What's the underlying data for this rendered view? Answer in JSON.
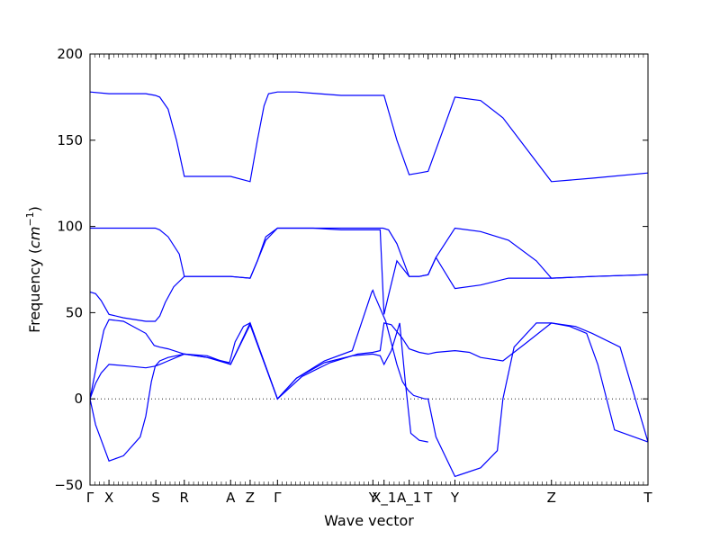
{
  "chart_data": {
    "type": "line",
    "title": "",
    "xlabel": "Wave vector",
    "ylabel": "Frequency (cm⁻¹)",
    "ylabel_main": "Frequency (",
    "ylabel_unit": "cm",
    "ylabel_exp": "−1",
    "ylabel_close": ")",
    "ylim": [
      -50,
      200
    ],
    "xlim": [
      0,
      1
    ],
    "yticks": [
      -50,
      0,
      50,
      100,
      150,
      200
    ],
    "ytick_labels": [
      "−50",
      "0",
      "50",
      "100",
      "150",
      "200"
    ],
    "xticks": [
      {
        "label": "Γ",
        "x": 0.0
      },
      {
        "label": "X",
        "x": 0.034
      },
      {
        "label": "S",
        "x": 0.118
      },
      {
        "label": "R",
        "x": 0.169
      },
      {
        "label": "A",
        "x": 0.252
      },
      {
        "label": "Z",
        "x": 0.287
      },
      {
        "label": "Γ",
        "x": 0.336
      },
      {
        "label": "Y",
        "x": 0.507
      },
      {
        "label": "X_1",
        "x": 0.527
      },
      {
        "label": "A_1",
        "x": 0.572
      },
      {
        "label": "T",
        "x": 0.606
      },
      {
        "label": "Y",
        "x": 0.654
      },
      {
        "label": "Z",
        "x": 0.827
      },
      {
        "label": "T",
        "x": 1.0
      }
    ],
    "zero_line": {
      "y": 0,
      "style": "dotted"
    },
    "grid": false,
    "legend": "none",
    "series_color": "#0000ff",
    "series": [
      {
        "x": [
          0,
          0.034,
          0.06,
          0.1,
          0.117,
          0.125,
          0.14,
          0.155,
          0.169,
          0.21,
          0.252,
          0.287,
          0.3,
          0.312,
          0.32,
          0.336,
          0.37,
          0.41,
          0.45,
          0.49,
          0.507,
          0.515,
          0.527,
          0.55,
          0.572,
          0.59,
          0.606,
          0.654,
          0.7,
          0.74,
          0.78,
          0.827,
          0.9,
          1.0
        ],
        "y": [
          178,
          177,
          177,
          177,
          176,
          175,
          168,
          150,
          129,
          129,
          129,
          126,
          150,
          170,
          177,
          178,
          178,
          177,
          176,
          176,
          176,
          176,
          176,
          150,
          130,
          131,
          132,
          175,
          173,
          163,
          146,
          126,
          128,
          131
        ]
      },
      {
        "x": [
          0,
          0.05,
          0.1,
          0.117,
          0.125,
          0.14,
          0.16,
          0.169,
          0.21,
          0.252,
          0.287,
          0.3,
          0.315,
          0.336,
          0.4,
          0.45,
          0.507,
          0.525,
          0.535,
          0.55,
          0.572,
          0.59,
          0.606,
          0.62,
          0.654,
          0.7,
          0.75,
          0.8,
          0.827,
          0.9,
          1.0
        ],
        "y": [
          99,
          99,
          99,
          99,
          98,
          94,
          84,
          71,
          71,
          71,
          70,
          80,
          94,
          99,
          99,
          99,
          99,
          99,
          98,
          90,
          71,
          71,
          72,
          82,
          99,
          97,
          92,
          80,
          70,
          71,
          72
        ]
      },
      {
        "x": [
          0,
          0.01,
          0.02,
          0.034,
          0.06,
          0.1,
          0.117,
          0.125,
          0.135,
          0.15,
          0.169,
          0.21,
          0.252,
          0.287,
          0.3,
          0.315,
          0.336,
          0.4,
          0.45,
          0.507,
          0.52,
          0.527,
          0.535,
          0.55,
          0.572,
          0.59,
          0.606,
          0.62,
          0.654,
          0.7,
          0.75,
          0.8,
          0.827,
          0.9,
          1.0
        ],
        "y": [
          62,
          61,
          57,
          49,
          47,
          45,
          45,
          48,
          56,
          65,
          71,
          71,
          71,
          70,
          80,
          92,
          99,
          99,
          98,
          98,
          98,
          49,
          60,
          80,
          71,
          71,
          72,
          82,
          64,
          66,
          70,
          70,
          70,
          71,
          72
        ]
      },
      {
        "x": [
          0,
          0.015,
          0.025,
          0.034,
          0.06,
          0.1,
          0.115,
          0.125,
          0.14,
          0.169,
          0.21,
          0.25,
          0.26,
          0.275,
          0.287,
          0.336,
          0.37,
          0.42,
          0.47,
          0.507,
          0.52,
          0.527,
          0.54,
          0.555,
          0.565,
          0.575,
          0.59,
          0.606
        ],
        "y": [
          0,
          25,
          40,
          46,
          45,
          38,
          31,
          30,
          29,
          26,
          24,
          21,
          33,
          42,
          44,
          0,
          12,
          21,
          25,
          26,
          25,
          20,
          28,
          44,
          10,
          -20,
          -24,
          -25
        ]
      },
      {
        "x": [
          0,
          0.01,
          0.02,
          0.034,
          0.07,
          0.1,
          0.117,
          0.125,
          0.14,
          0.169,
          0.21,
          0.252,
          0.287,
          0.336,
          0.38,
          0.43,
          0.48,
          0.507,
          0.52,
          0.527,
          0.54,
          0.56,
          0.572,
          0.59,
          0.606,
          0.62,
          0.654,
          0.68,
          0.7,
          0.74,
          0.78,
          0.827,
          0.87,
          0.9,
          0.95,
          1.0
        ],
        "y": [
          0,
          9,
          15,
          20,
          19,
          18,
          19,
          20,
          22,
          26,
          25,
          20,
          43,
          0,
          13,
          21,
          26,
          27,
          28,
          44,
          43,
          35,
          29,
          27,
          26,
          27,
          28,
          27,
          24,
          22,
          32,
          44,
          42,
          38,
          30,
          -25
        ]
      },
      {
        "x": [
          0,
          0.01,
          0.034,
          0.06,
          0.09,
          0.1,
          0.11,
          0.117,
          0.125,
          0.14,
          0.169,
          0.21,
          0.252,
          0.287,
          0.336,
          0.37,
          0.42,
          0.47,
          0.505,
          0.507,
          0.51,
          0.53,
          0.55,
          0.56,
          0.57,
          0.58,
          0.6,
          0.606,
          0.62,
          0.654,
          0.7,
          0.73,
          0.74,
          0.76,
          0.8,
          0.827,
          0.86,
          0.89,
          0.91,
          0.94,
          1.0
        ],
        "y": [
          0,
          -15,
          -36,
          -33,
          -22,
          -10,
          10,
          19,
          22,
          24,
          26,
          24,
          20,
          44,
          0,
          12,
          22,
          28,
          62,
          63,
          60,
          45,
          20,
          10,
          5,
          2,
          0,
          0,
          -22,
          -45,
          -40,
          -30,
          0,
          30,
          44,
          44,
          42,
          38,
          20,
          -18,
          -25
        ]
      }
    ]
  }
}
